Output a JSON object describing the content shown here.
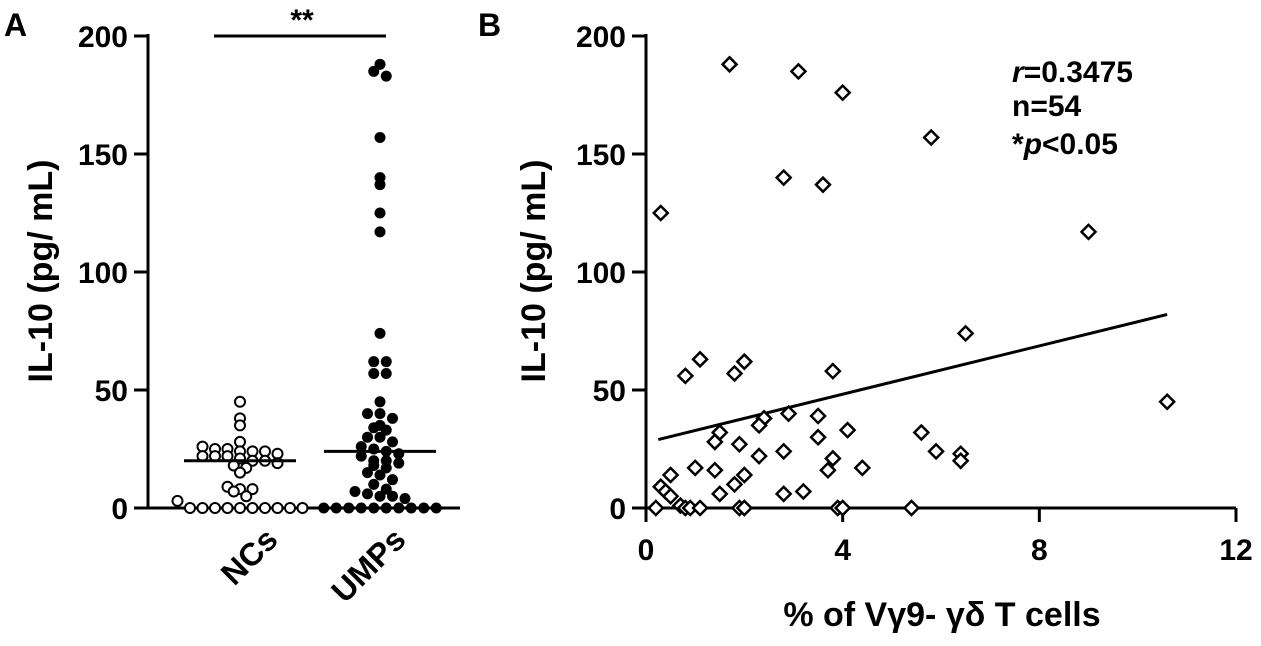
{
  "chart_data": [
    {
      "panel": "A",
      "type": "scatter",
      "ylabel": "IL-10 (pg/ mL)",
      "ylim": [
        0,
        200
      ],
      "yticks": [
        "0",
        "50",
        "100",
        "150",
        "200"
      ],
      "categories": [
        "NCs",
        "UMPs"
      ],
      "significance": "**",
      "series": [
        {
          "name": "NCs",
          "marker": "open-circle",
          "median": 20,
          "values": [
            45,
            38,
            35,
            28,
            26,
            25,
            25,
            24,
            24,
            24,
            23,
            22,
            22,
            22,
            21,
            20,
            20,
            19,
            18,
            17,
            15,
            9,
            8,
            8,
            7,
            5,
            3,
            0,
            0,
            0,
            0,
            0,
            0,
            0,
            0,
            0,
            0
          ]
        },
        {
          "name": "UMPs",
          "marker": "filled-circle",
          "median": 24,
          "values": [
            188,
            185,
            183,
            157,
            140,
            137,
            125,
            117,
            74,
            62,
            62,
            57,
            57,
            45,
            40,
            40,
            38,
            35,
            34,
            33,
            30,
            30,
            28,
            26,
            25,
            24,
            23,
            22,
            20,
            20,
            19,
            18,
            17,
            15,
            14,
            12,
            10,
            8,
            7,
            6,
            5,
            5,
            4,
            0,
            0,
            0,
            0,
            0,
            0,
            0,
            0,
            0,
            0
          ]
        }
      ]
    },
    {
      "panel": "B",
      "type": "scatter",
      "xlabel": "% of Vγ9- γδ T cells",
      "ylabel": "IL-10 (pg/ mL)",
      "xlim": [
        0,
        12
      ],
      "ylim": [
        0,
        200
      ],
      "xticks": [
        "0",
        "4",
        "8",
        "12"
      ],
      "yticks": [
        "0",
        "50",
        "100",
        "150",
        "200"
      ],
      "marker": "open-diamond",
      "annotation": {
        "r_symbol": "r",
        "r_value": "=0.3475",
        "n": "n=54",
        "p_prefix": "*",
        "p_symbol": "p",
        "p_value": "<0.05"
      },
      "regression": {
        "x": [
          0.25,
          10.6
        ],
        "y": [
          29,
          82
        ]
      },
      "points": [
        [
          0.3,
          125
        ],
        [
          1.7,
          188
        ],
        [
          3.1,
          185
        ],
        [
          4.0,
          176
        ],
        [
          5.8,
          157
        ],
        [
          2.8,
          140
        ],
        [
          3.6,
          137
        ],
        [
          9.0,
          117
        ],
        [
          6.5,
          74
        ],
        [
          1.1,
          63
        ],
        [
          2.0,
          62
        ],
        [
          0.8,
          56
        ],
        [
          1.8,
          57
        ],
        [
          3.8,
          58
        ],
        [
          10.6,
          45
        ],
        [
          2.9,
          40
        ],
        [
          3.5,
          39
        ],
        [
          2.4,
          38
        ],
        [
          1.5,
          32
        ],
        [
          2.3,
          35
        ],
        [
          4.1,
          33
        ],
        [
          5.6,
          32
        ],
        [
          3.5,
          30
        ],
        [
          1.4,
          28
        ],
        [
          1.9,
          27
        ],
        [
          2.8,
          24
        ],
        [
          5.9,
          24
        ],
        [
          6.4,
          23
        ],
        [
          2.3,
          22
        ],
        [
          6.4,
          20
        ],
        [
          3.8,
          21
        ],
        [
          1.0,
          17
        ],
        [
          1.4,
          16
        ],
        [
          3.7,
          16
        ],
        [
          4.4,
          17
        ],
        [
          2.0,
          14
        ],
        [
          0.5,
          14
        ],
        [
          0.3,
          9
        ],
        [
          0.4,
          7
        ],
        [
          1.8,
          10
        ],
        [
          2.8,
          6
        ],
        [
          3.2,
          7
        ],
        [
          1.5,
          6
        ],
        [
          0.5,
          5
        ],
        [
          0.2,
          0
        ],
        [
          0.7,
          1
        ],
        [
          0.8,
          0
        ],
        [
          0.9,
          0
        ],
        [
          1.1,
          0
        ],
        [
          1.9,
          0
        ],
        [
          2.0,
          0
        ],
        [
          3.9,
          0
        ],
        [
          5.4,
          0
        ],
        [
          4.0,
          0
        ]
      ]
    }
  ]
}
